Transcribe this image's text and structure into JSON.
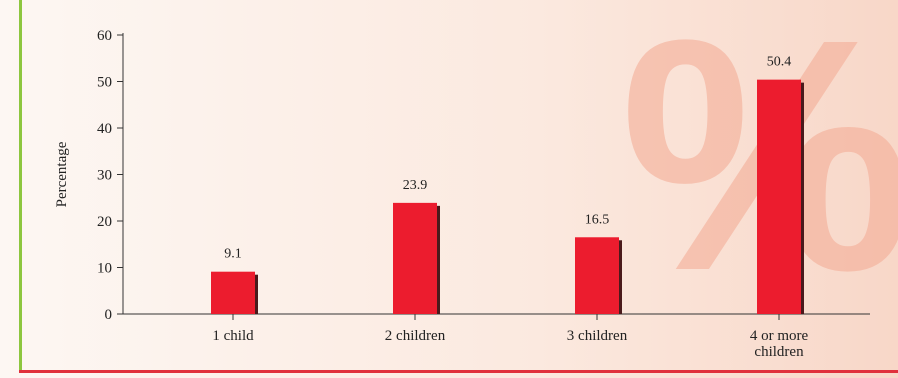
{
  "chart_data": {
    "type": "bar",
    "categories": [
      [
        "1 child"
      ],
      [
        "2 children"
      ],
      [
        "3 children"
      ],
      [
        "4 or more",
        "children"
      ]
    ],
    "values": [
      9.1,
      23.9,
      16.5,
      50.4
    ],
    "value_labels": [
      "9.1",
      "23.9",
      "16.5",
      "50.4"
    ],
    "ylabel": "Percentage",
    "ylim": [
      0,
      60
    ],
    "yticks": [
      0,
      10,
      20,
      30,
      40,
      50,
      60
    ],
    "grid": false,
    "bar_color": "#ec1c2e",
    "bar_shadow_color": "#4a1a1c"
  },
  "decoration": {
    "watermark_glyph": "%",
    "left_rule_color": "#8dc63f",
    "bottom_rule_color": "#e0313c"
  }
}
